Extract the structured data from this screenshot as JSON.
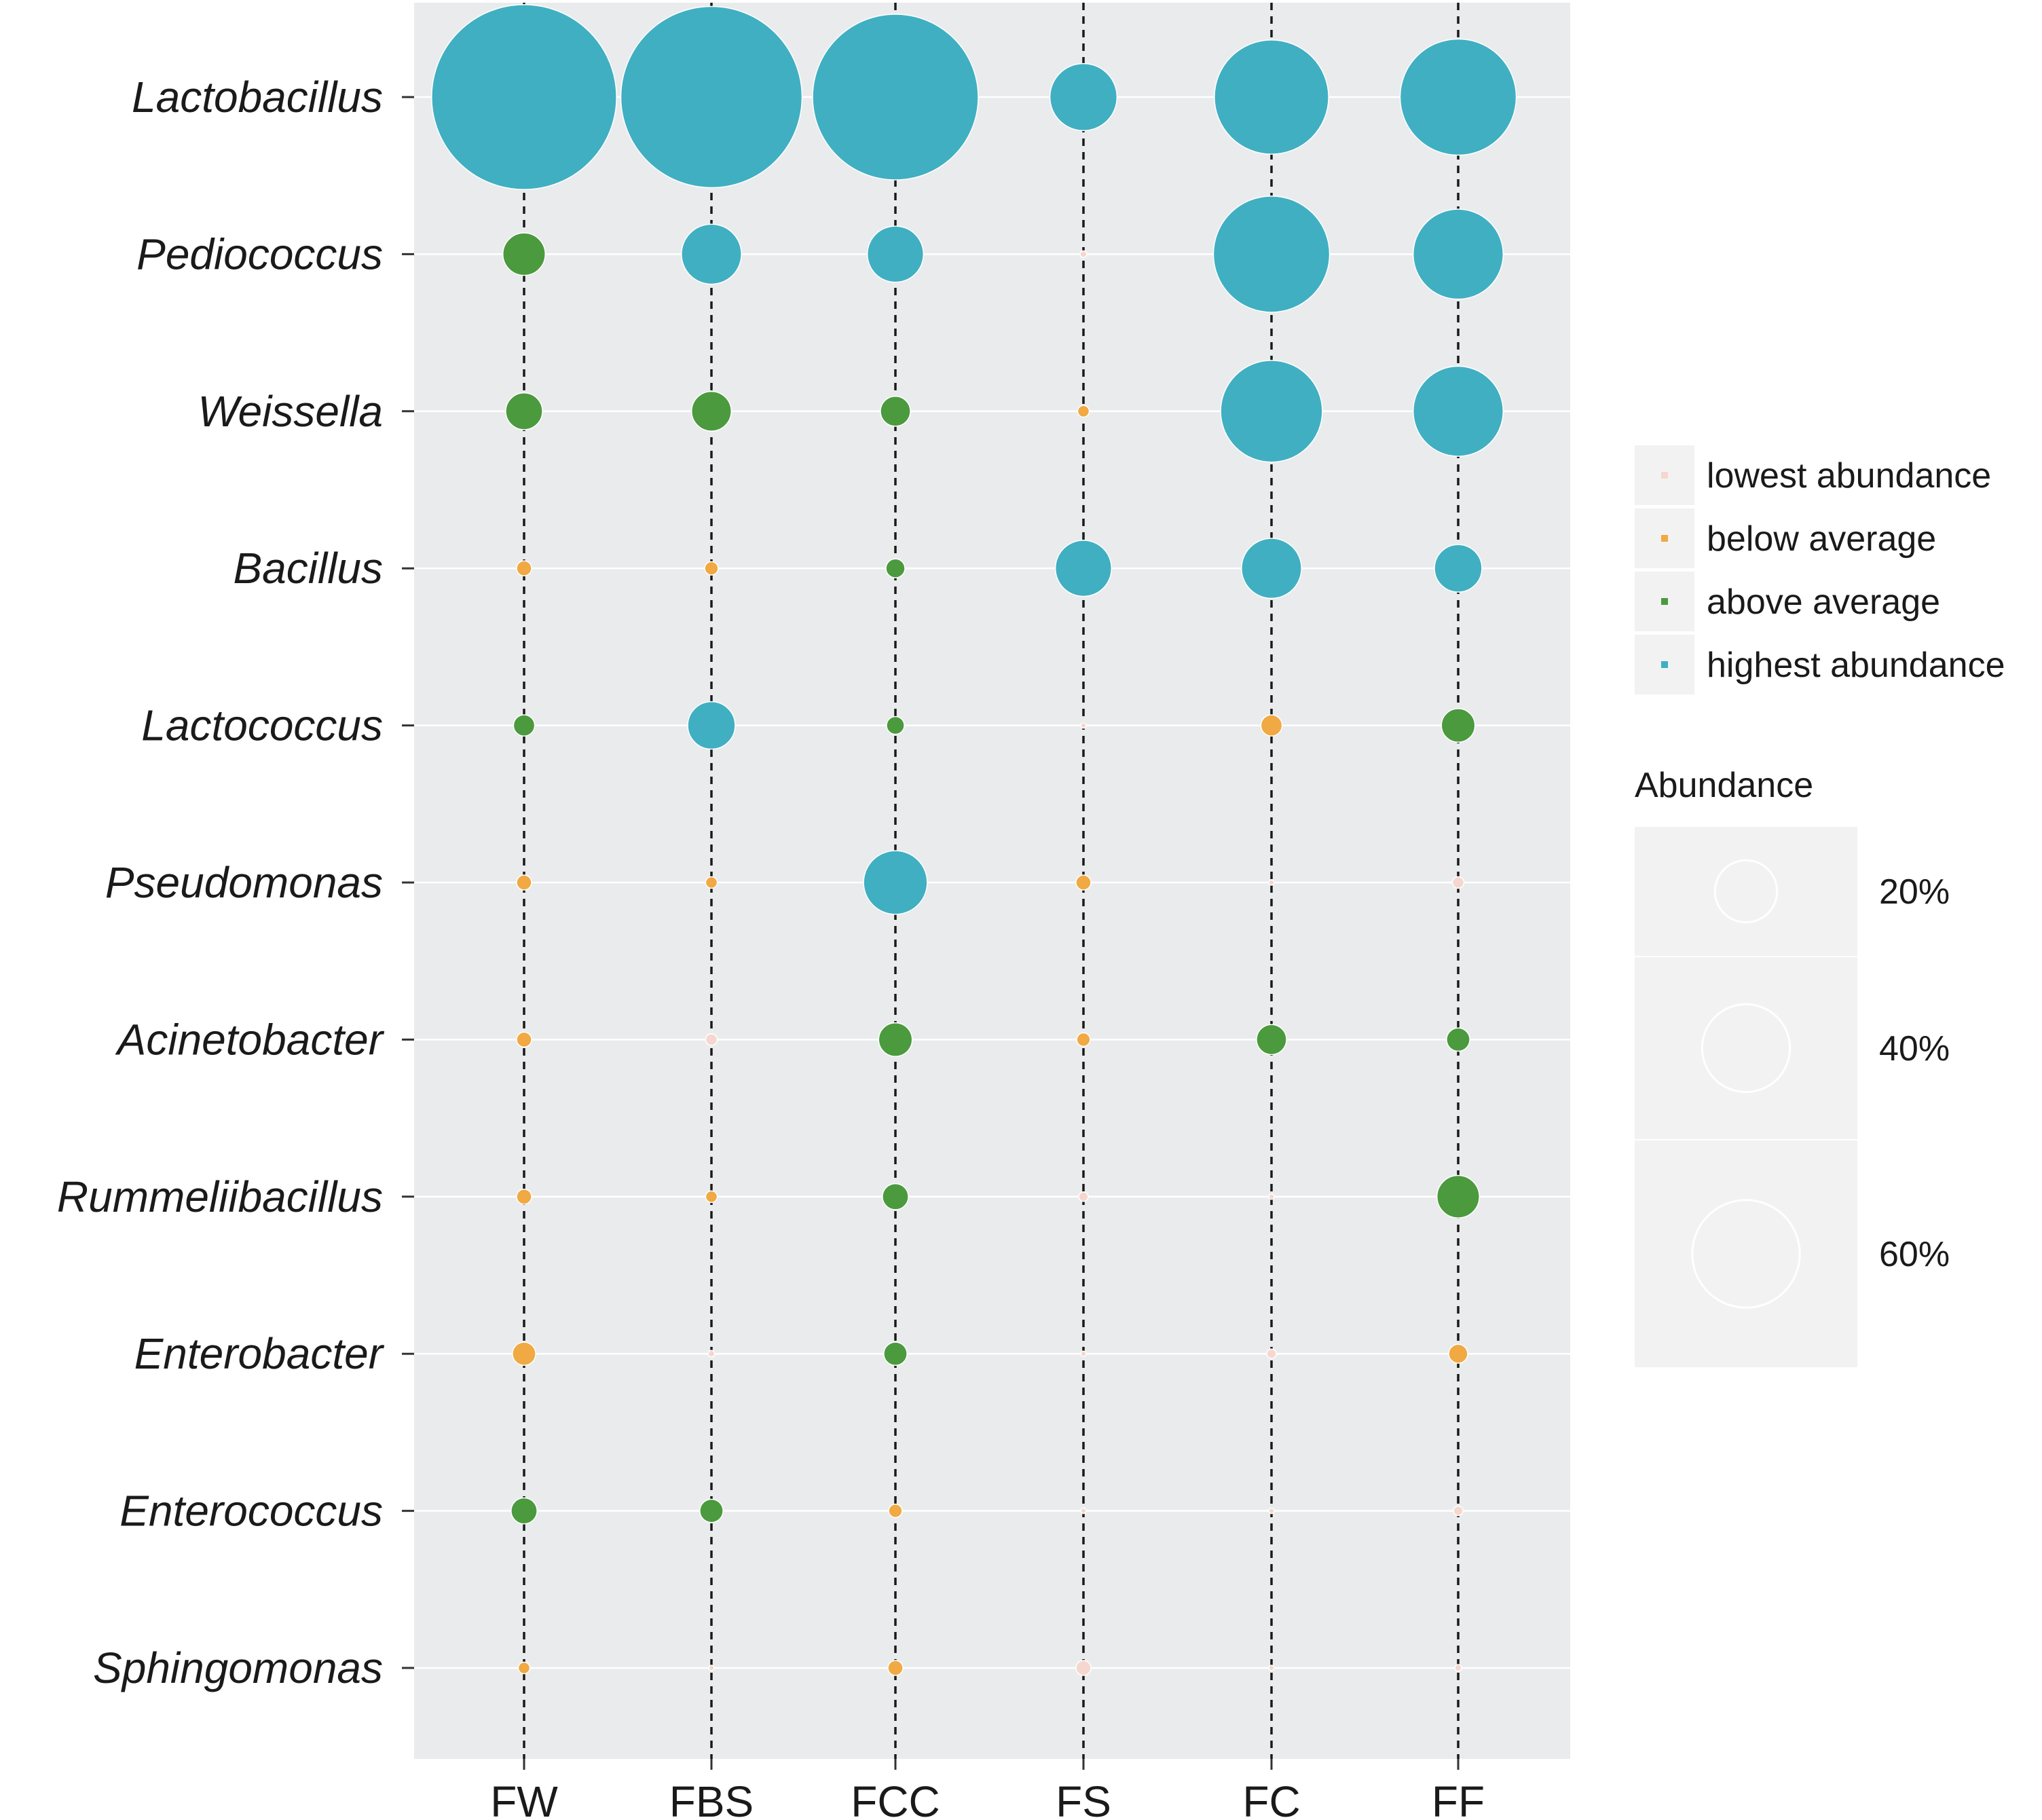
{
  "chart_data": {
    "type": "scatter",
    "subtype": "bubble",
    "title": "",
    "xlabel": "",
    "ylabel": "",
    "grid": true,
    "x_categories": [
      "FW",
      "FBS",
      "FCC",
      "FS",
      "FC",
      "FF"
    ],
    "y_categories": [
      "Lactobacillus",
      "Pediococcus",
      "Weissella",
      "Bacillus",
      "Lactococcus",
      "Pseudomonas",
      "Acinetobacter",
      "Rummeliibacillus",
      "Enterobacter",
      "Enterococcus",
      "Sphingomonas"
    ],
    "series": [
      {
        "name": "Lactobacillus",
        "abundance": [
          76,
          73,
          61,
          10,
          29,
          30
        ],
        "level": [
          "highest abundance",
          "highest abundance",
          "highest abundance",
          "highest abundance",
          "highest abundance",
          "highest abundance"
        ]
      },
      {
        "name": "Pediococcus",
        "abundance": [
          4,
          8,
          7,
          0.1,
          30,
          18
        ],
        "level": [
          "above average",
          "highest abundance",
          "highest abundance",
          "lowest abundance",
          "highest abundance",
          "highest abundance"
        ]
      },
      {
        "name": "Weissella",
        "abundance": [
          3,
          3.5,
          2,
          0.3,
          23,
          18
        ],
        "level": [
          "above average",
          "above average",
          "above average",
          "below average",
          "highest abundance",
          "highest abundance"
        ]
      },
      {
        "name": "Bacillus",
        "abundance": [
          0.5,
          0.4,
          0.8,
          7,
          8,
          5
        ],
        "level": [
          "below average",
          "below average",
          "above average",
          "highest abundance",
          "highest abundance",
          "highest abundance"
        ]
      },
      {
        "name": "Lactococcus",
        "abundance": [
          1,
          5,
          0.7,
          0.05,
          1,
          2.5
        ],
        "level": [
          "above average",
          "highest abundance",
          "above average",
          "lowest abundance",
          "below average",
          "above average"
        ]
      },
      {
        "name": "Pseudomonas",
        "abundance": [
          0.5,
          0.3,
          9,
          0.5,
          0.05,
          0.3
        ],
        "level": [
          "below average",
          "below average",
          "highest abundance",
          "below average",
          "lowest abundance",
          "lowest abundance"
        ]
      },
      {
        "name": "Acinetobacter",
        "abundance": [
          0.5,
          0.3,
          2.5,
          0.4,
          2,
          1.2
        ],
        "level": [
          "below average",
          "lowest abundance",
          "above average",
          "below average",
          "above average",
          "above average"
        ]
      },
      {
        "name": "Rummeliibacillus",
        "abundance": [
          0.5,
          0.3,
          1.5,
          0.2,
          0.05,
          4
        ],
        "level": [
          "below average",
          "below average",
          "above average",
          "lowest abundance",
          "lowest abundance",
          "above average"
        ]
      },
      {
        "name": "Enterobacter",
        "abundance": [
          1.2,
          0.1,
          1.2,
          0.05,
          0.2,
          0.8
        ],
        "level": [
          "below average",
          "lowest abundance",
          "above average",
          "lowest abundance",
          "lowest abundance",
          "below average"
        ]
      },
      {
        "name": "Enterococcus",
        "abundance": [
          1.5,
          1.2,
          0.4,
          0.05,
          0.05,
          0.2
        ],
        "level": [
          "above average",
          "above average",
          "below average",
          "lowest abundance",
          "lowest abundance",
          "lowest abundance"
        ]
      },
      {
        "name": "Sphingomonas",
        "abundance": [
          0.3,
          0.05,
          0.5,
          0.5,
          0.05,
          0.1
        ],
        "level": [
          "below average",
          "lowest abundance",
          "below average",
          "lowest abundance",
          "lowest abundance",
          "lowest abundance"
        ]
      }
    ],
    "color_legend": {
      "entries": [
        {
          "label": "lowest abundance",
          "color": "#f6d7cf"
        },
        {
          "label": "below average",
          "color": "#f0a943"
        },
        {
          "label": "above average",
          "color": "#4b9a3e"
        },
        {
          "label": "highest abundance",
          "color": "#41afc2"
        }
      ]
    },
    "size_legend": {
      "title": "Abundance",
      "entries": [
        {
          "label": "20%",
          "value": 20
        },
        {
          "label": "40%",
          "value": 40
        },
        {
          "label": "60%",
          "value": 60
        }
      ]
    },
    "colors": {
      "panel": "#e9ebed",
      "legend_key": "#f2f2f2",
      "gridline": "#ffffff",
      "dashed_line": "#1a1a1a"
    }
  }
}
